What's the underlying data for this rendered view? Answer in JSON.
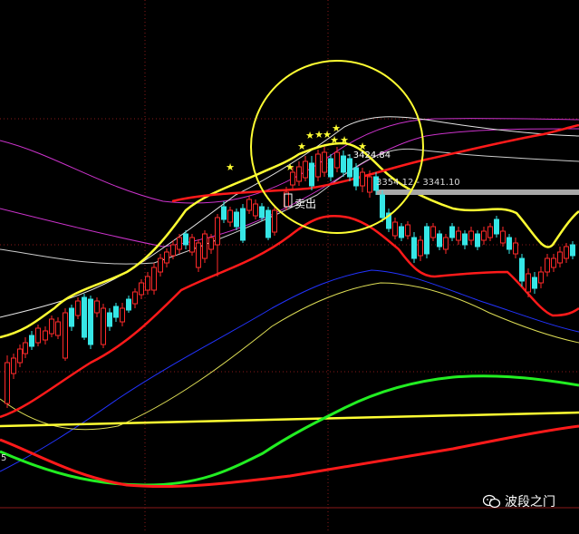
{
  "annotations": {
    "sell_label": "卖出",
    "high_label": "- 3424.84",
    "range_label": "3354.12 - 3341.10",
    "left_edge_label": "5"
  },
  "watermark": {
    "text": "波段之门",
    "icon": "wechat-icon"
  },
  "colors": {
    "background": "#000000",
    "up_candle": "#ff2a2a",
    "down_candle": "#36e6e6",
    "ma_yellow": "#ffff33",
    "ma_red": "#ff1a1a",
    "ma_green": "#22ee22",
    "band_magenta": "#cc33cc",
    "band_white": "#cccccc",
    "ma_blue": "#2233ff",
    "highlight_circle": "#ffff33",
    "grid": "#8a1a1a"
  },
  "markers": {
    "star_glyph": "★"
  }
}
